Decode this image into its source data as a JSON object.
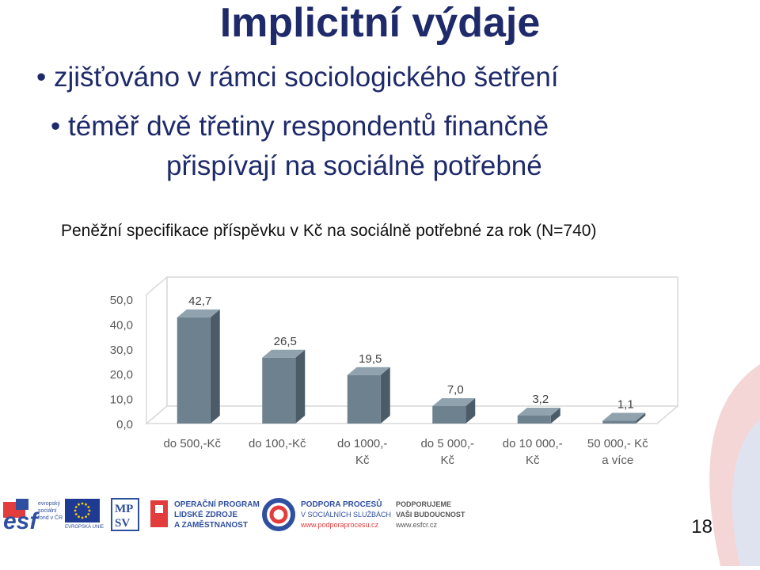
{
  "slide": {
    "title": "Implicitní výdaje",
    "bullet1": "zjišťováno v rámci sociologického šetření",
    "bullet2_line1": "téměř dvě třetiny respondentů finančně",
    "bullet2_line2": "přispívají na sociálně potřebné",
    "bullet_glyph": "•",
    "page_number": "18"
  },
  "chart_data": {
    "type": "bar",
    "title": "Peněžní specifikace příspěvku v Kč na sociálně potřebné za rok (N=740)",
    "categories": [
      [
        "do 500,-Kč"
      ],
      [
        "do 100,-Kč"
      ],
      [
        "do 1000,-",
        "Kč"
      ],
      [
        "do 5 000,-",
        "Kč"
      ],
      [
        "do 10 000,-",
        "Kč"
      ],
      [
        "50 000,- Kč",
        "a více"
      ]
    ],
    "values": [
      42.7,
      26.5,
      19.5,
      7.0,
      3.2,
      1.1
    ],
    "value_labels": [
      "42,7",
      "26,5",
      "19,5",
      "7,0",
      "3,2",
      "1,1"
    ],
    "yticks": [
      "0,0",
      "10,0",
      "20,0",
      "30,0",
      "40,0",
      "50,0"
    ],
    "ylim": [
      0,
      50
    ],
    "grid": false,
    "colors": {
      "bar_front": "#6d818f",
      "bar_side": "#4b5c68",
      "bar_top": "#8fa2ae",
      "wall": "#d9d9d9"
    }
  },
  "footer": {
    "esf_label": "esf",
    "esf_caption": [
      "evropský",
      "sociální",
      "fond v ČR"
    ],
    "eu_caption": "EVROPSKÁ UNIE",
    "mpsv": [
      "MP",
      "SV"
    ],
    "op_lines": [
      "OPERAČNÍ PROGRAM",
      "LIDSKÉ ZDROJE",
      "A ZAMĚSTNANOST"
    ],
    "pp_lines": [
      "PODPORA PROCESŮ",
      "V SOCIÁLNÍCH SLUŽBÁCH",
      "www.podporaprocesu.cz"
    ],
    "pf_lines": [
      "PODPORUJEME",
      "VAŠI BUDOUCNOST",
      "www.esfcr.cz"
    ]
  }
}
